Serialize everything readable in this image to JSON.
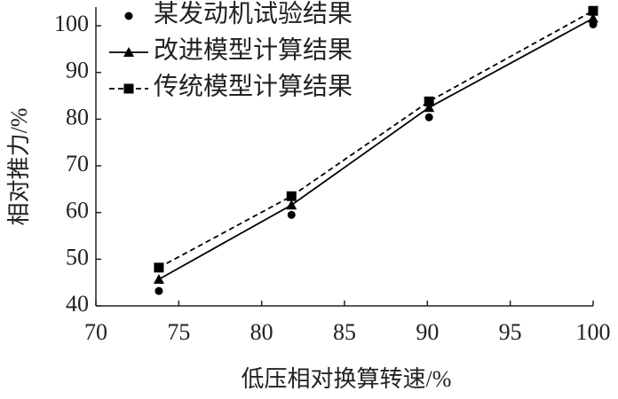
{
  "chart_data": {
    "type": "line",
    "xlabel": "低压相对换算转速/%",
    "ylabel": "相对推力/%",
    "x": [
      73.8,
      81.8,
      90.1,
      100
    ],
    "xlim": [
      70,
      100
    ],
    "ylim": [
      40,
      104
    ],
    "xticks": [
      70,
      75,
      80,
      85,
      90,
      95,
      100
    ],
    "yticks": [
      40,
      50,
      60,
      70,
      80,
      90,
      100
    ],
    "legend": "upper-left",
    "series": [
      {
        "name": "某发动机试验结果",
        "color": "#000000",
        "marker": "circle",
        "line": "none",
        "values": [
          43.2,
          59.5,
          80.4,
          100.3
        ]
      },
      {
        "name": "改进模型计算结果",
        "color": "#000000",
        "marker": "triangle",
        "line": "solid",
        "values": [
          45.7,
          61.6,
          82.5,
          101.6
        ]
      },
      {
        "name": "传统模型计算结果",
        "color": "#000000",
        "marker": "square",
        "line": "dashed",
        "values": [
          48.2,
          63.5,
          83.8,
          103.2
        ]
      }
    ]
  }
}
